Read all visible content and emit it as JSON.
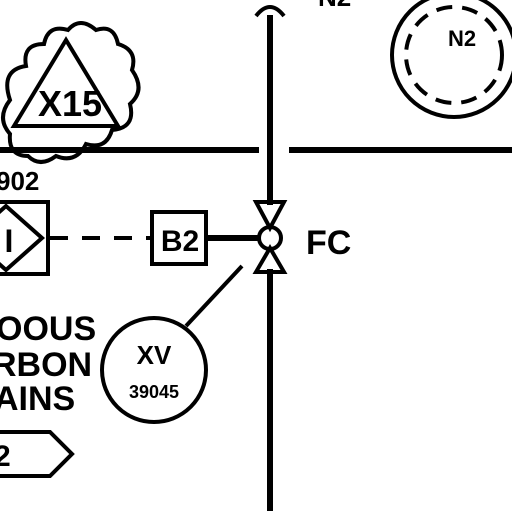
{
  "diagram": {
    "labels": {
      "n2_line_label": "N2",
      "triangle_tag": "X15",
      "triangle_sub": "902",
      "interlock_symbol": "I",
      "block_tag": "B2",
      "fail_action": "FC",
      "valve_tag_func": "XV",
      "valve_tag_num": "39045",
      "circle_tag": "N2",
      "side_text_1": "OOUS",
      "side_text_2": "RBON",
      "side_text_3": "AINS",
      "offpage_text": "2"
    },
    "colors": {
      "line": "#000000",
      "background": "#ffffff"
    }
  }
}
